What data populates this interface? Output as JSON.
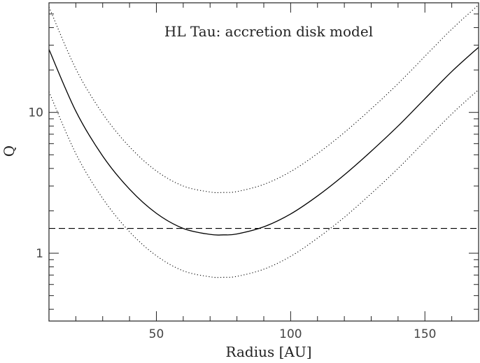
{
  "chart_data": {
    "type": "line",
    "title": "HL Tau: accretion disk model",
    "xlabel": "Radius [AU]",
    "ylabel": "Q",
    "xlim": [
      10,
      170
    ],
    "ylim": [
      0.33,
      60
    ],
    "yscale": "log",
    "grid": false,
    "x_ticks": [
      {
        "value": 50,
        "label": "50"
      },
      {
        "value": 100,
        "label": "100"
      },
      {
        "value": 150,
        "label": "150"
      }
    ],
    "y_ticks": [
      {
        "value": 1,
        "label": "1"
      },
      {
        "value": 10,
        "label": "10"
      }
    ],
    "x": [
      10,
      20,
      30,
      40,
      50,
      60,
      70,
      75,
      80,
      90,
      100,
      110,
      120,
      130,
      140,
      150,
      160,
      170
    ],
    "series": [
      {
        "style": "solid",
        "color": "#000000",
        "values": [
          28.0,
          10.2,
          4.9,
          2.85,
          1.92,
          1.5,
          1.36,
          1.35,
          1.37,
          1.54,
          1.9,
          2.55,
          3.6,
          5.3,
          8.0,
          12.5,
          19.5,
          29.0
        ]
      },
      {
        "style": "dotted",
        "color": "#000000",
        "values": [
          56.0,
          20.4,
          9.8,
          5.7,
          3.84,
          3.0,
          2.72,
          2.7,
          2.74,
          3.08,
          3.8,
          5.1,
          7.2,
          10.6,
          16.0,
          25.0,
          39.0,
          58.0
        ]
      },
      {
        "style": "dotted",
        "color": "#000000",
        "values": [
          14.0,
          5.1,
          2.45,
          1.42,
          0.96,
          0.75,
          0.68,
          0.675,
          0.685,
          0.77,
          0.95,
          1.28,
          1.8,
          2.65,
          4.0,
          6.25,
          9.75,
          14.5
        ]
      },
      {
        "style": "dashed",
        "color": "#000000",
        "values": [
          1.5,
          1.5,
          1.5,
          1.5,
          1.5,
          1.5,
          1.5,
          1.5,
          1.5,
          1.5,
          1.5,
          1.5,
          1.5,
          1.5,
          1.5,
          1.5,
          1.5,
          1.5
        ]
      }
    ]
  }
}
